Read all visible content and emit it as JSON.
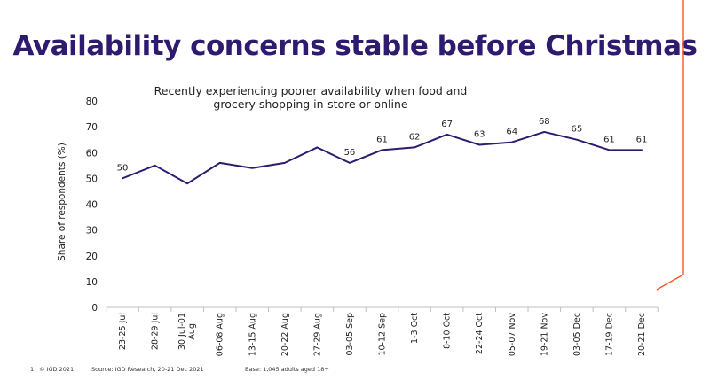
{
  "slide": {
    "title": "Availability concerns stable before Christmas"
  },
  "footer": {
    "page_number": "1",
    "copyright": "© IGD 2021",
    "source": "Source: IGD Research, 20-21 Dec 2021",
    "base": "Base: 1,045 adults aged 18+"
  },
  "colors": {
    "title": "#2e1a6e",
    "line": "#2e1a6e",
    "accent": "#f05a28"
  },
  "chart_data": {
    "type": "line",
    "title": "Recently experiencing poorer availability when food and grocery shopping in-store or online",
    "xlabel": "",
    "ylabel": "Share of respondents (%)",
    "ylim": [
      0,
      80
    ],
    "yticks": [
      0,
      10,
      20,
      30,
      40,
      50,
      60,
      70,
      80
    ],
    "grid": false,
    "legend": "none",
    "categories": [
      "23-25 Jul",
      "28-29 Jul",
      "30 Jul-01 Aug",
      "06-08 Aug",
      "13-15 Aug",
      "20-22 Aug",
      "27-29 Aug",
      "03-05 Sep",
      "10-12 Sep",
      "1-3 Oct",
      "8-10 Oct",
      "22-24 Oct",
      "05-07 Nov",
      "19-21 Nov",
      "03-05 Dec",
      "17-19 Dec",
      "20-21 Dec"
    ],
    "series": [
      {
        "name": "",
        "values": [
          50,
          55,
          48,
          56,
          54,
          56,
          62,
          56,
          61,
          62,
          67,
          63,
          64,
          68,
          65,
          61,
          61
        ],
        "labels": [
          "50",
          "",
          "",
          "",
          "",
          "",
          "",
          "56",
          "61",
          "62",
          "67",
          "63",
          "64",
          "68",
          "65",
          "61",
          "61"
        ]
      }
    ]
  }
}
